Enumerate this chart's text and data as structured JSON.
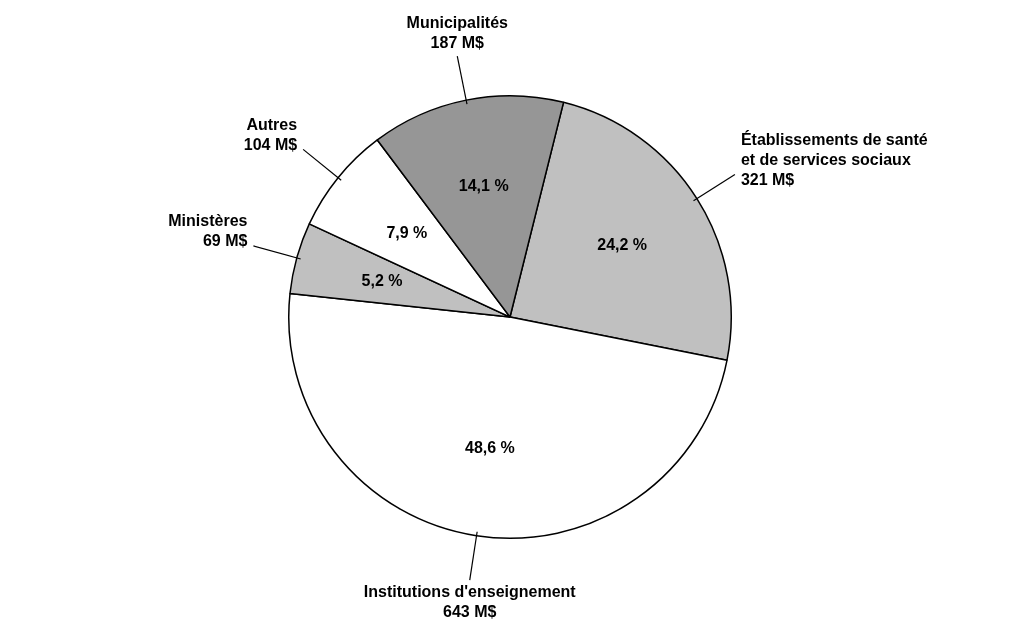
{
  "chart_data": {
    "type": "pie",
    "categories": [
      "Établissements de santé et de services sociaux",
      "Institutions d'enseignement",
      "Ministères",
      "Autres",
      "Municipalités"
    ],
    "values": [
      321,
      643,
      69,
      104,
      187
    ],
    "value_labels": [
      "321 M$",
      "643 M$",
      "69 M$",
      "104 M$",
      "187 M$"
    ],
    "colors": [
      "#c0c0c0",
      "#ffffff",
      "#c0c0c0",
      "#ffffff",
      "#969696"
    ],
    "annotations": [
      {
        "text": "24,2 %",
        "x": "Établissements de santé et de services sociaux"
      },
      {
        "text": "48,6 %",
        "x": "Institutions d'enseignement"
      },
      {
        "text": "5,2 %",
        "x": "Ministères"
      },
      {
        "text": "7,9 %",
        "x": "Autres"
      },
      {
        "text": "14,1 %",
        "x": "Municipalités"
      }
    ],
    "legend": false
  }
}
